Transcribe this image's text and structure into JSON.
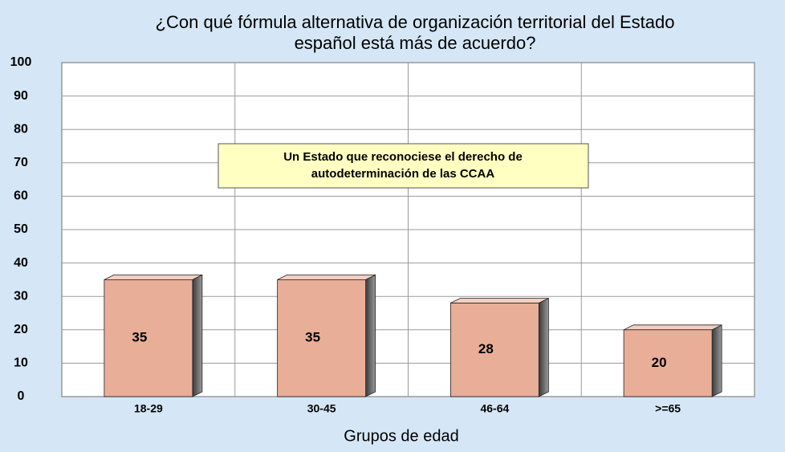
{
  "chart_data": {
    "type": "bar",
    "title": [
      "¿Con qué fórmula alternativa de organización territorial del Estado",
      "español está más de acuerdo?"
    ],
    "annotation": [
      "Un Estado que reconociese el derecho de",
      "autodeterminación de las CCAA"
    ],
    "x_label": "Grupos de edad",
    "categories": [
      "18-29",
      "30-45",
      "46-64",
      ">=65"
    ],
    "values": [
      35,
      35,
      28,
      20
    ],
    "color": "#e9ae98",
    "ylim": [
      0,
      100
    ],
    "yticks": [
      0,
      10,
      20,
      30,
      40,
      50,
      60,
      70,
      80,
      90,
      100
    ],
    "grid": true
  }
}
